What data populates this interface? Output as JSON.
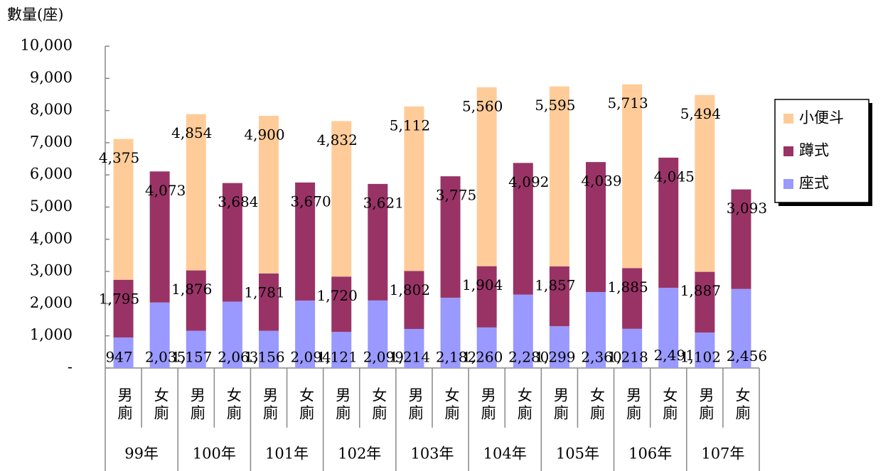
{
  "chart_data": {
    "type": "stacked_bar",
    "y_axis_title": "數量(座)",
    "groups": [
      "99年",
      "100年",
      "101年",
      "102年",
      "103年",
      "104年",
      "105年",
      "106年",
      "107年"
    ],
    "categories": [
      "男廁",
      "女廁",
      "男廁",
      "女廁",
      "男廁",
      "女廁",
      "男廁",
      "女廁",
      "男廁",
      "女廁",
      "男廁",
      "女廁",
      "男廁",
      "女廁",
      "男廁",
      "女廁",
      "男廁",
      "女廁"
    ],
    "series": [
      {
        "name": "座式",
        "color": "#9999ff",
        "values": [
          947,
          2035,
          1157,
          2063,
          1156,
          2094,
          1121,
          2099,
          1214,
          2182,
          1260,
          2280,
          1299,
          2360,
          1218,
          2491,
          1102,
          2456
        ],
        "value_labels": [
          "947",
          "2,035",
          "1,157",
          "2,063",
          "1,156",
          "2,094",
          "1,121",
          "2,099",
          "1,214",
          "2,182",
          "1,260",
          "2,280",
          "1,299",
          "2,360",
          "1,218",
          "2,491",
          "1,102",
          "2,456"
        ]
      },
      {
        "name": "蹲式",
        "color": "#993366",
        "values": [
          1795,
          4073,
          1876,
          3684,
          1781,
          3670,
          1720,
          3621,
          1802,
          3775,
          1904,
          4092,
          1857,
          4039,
          1885,
          4045,
          1887,
          3093
        ],
        "value_labels": [
          "1,795",
          "4,073",
          "1,876",
          "3,684",
          "1,781",
          "3,670",
          "1,720",
          "3,621",
          "1,802",
          "3,775",
          "1,904",
          "4,092",
          "1,857",
          "4,039",
          "1,885",
          "4,045",
          "1,887",
          "3,093"
        ]
      },
      {
        "name": "小便斗",
        "color": "#ffcc99",
        "values": [
          4375,
          null,
          4854,
          null,
          4900,
          null,
          4832,
          null,
          5112,
          null,
          5560,
          null,
          5595,
          null,
          5713,
          null,
          5494,
          null
        ],
        "value_labels": [
          "4,375",
          null,
          "4,854",
          null,
          "4,900",
          null,
          "4,832",
          null,
          "5,112",
          null,
          "5,560",
          null,
          "5,595",
          null,
          "5,713",
          null,
          "5,494",
          null
        ]
      }
    ],
    "ylim": [
      0,
      10000
    ],
    "yticks": [
      {
        "value": 0,
        "label": "-"
      },
      {
        "value": 1000,
        "label": "1,000"
      },
      {
        "value": 2000,
        "label": "2,000"
      },
      {
        "value": 3000,
        "label": "3,000"
      },
      {
        "value": 4000,
        "label": "4,000"
      },
      {
        "value": 5000,
        "label": "5,000"
      },
      {
        "value": 6000,
        "label": "6,000"
      },
      {
        "value": 7000,
        "label": "7,000"
      },
      {
        "value": 8000,
        "label": "8,000"
      },
      {
        "value": 9000,
        "label": "9,000"
      },
      {
        "value": 10000,
        "label": "10,000"
      }
    ],
    "legend": "right"
  }
}
